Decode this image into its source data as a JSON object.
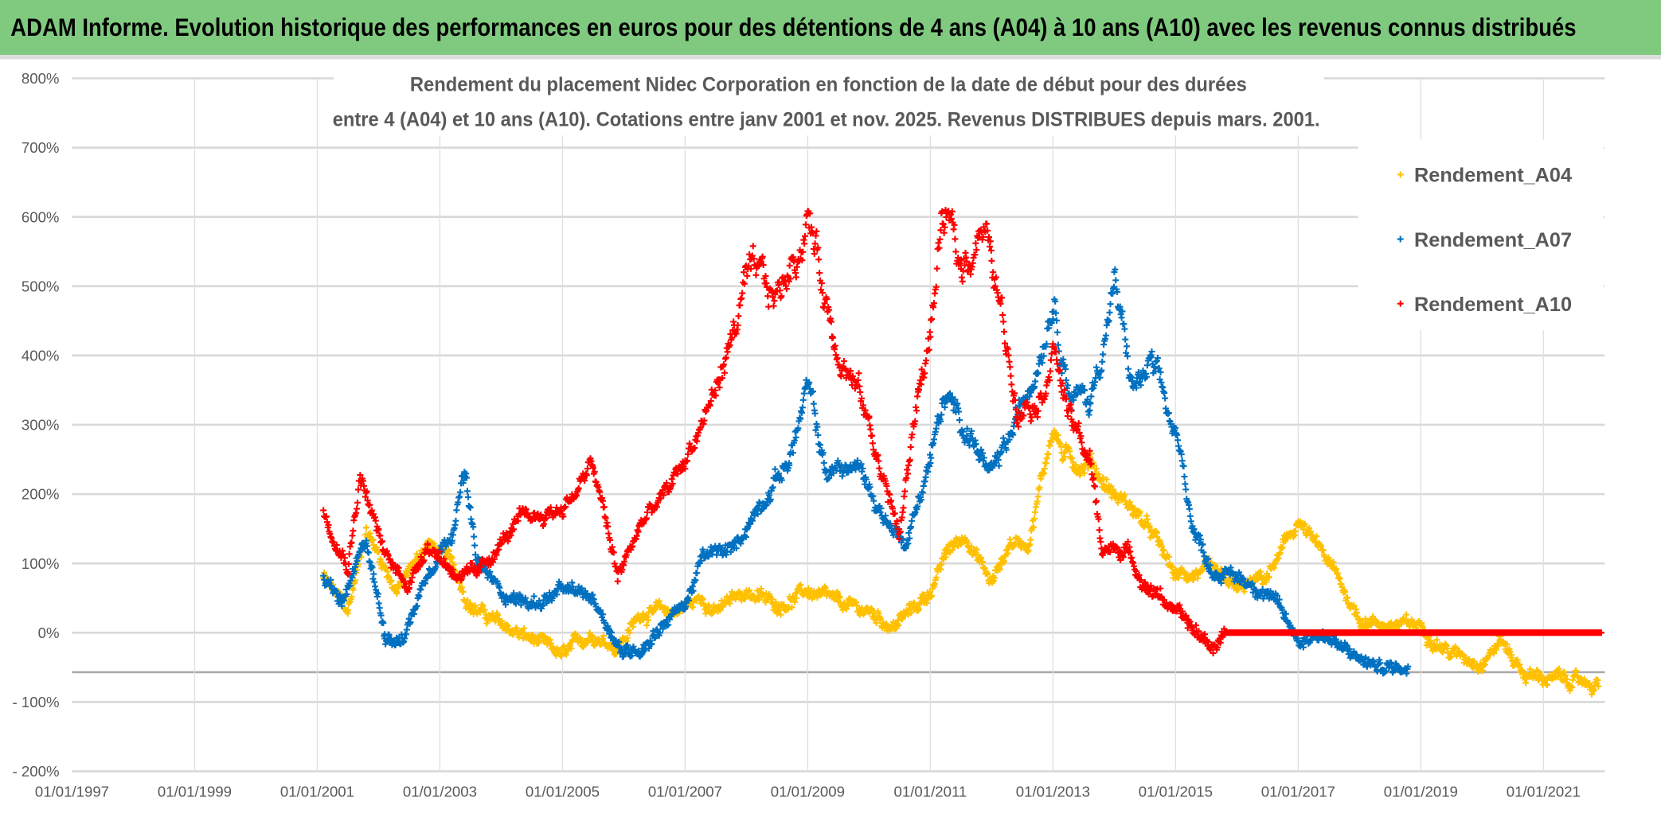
{
  "header": {
    "title": "ADAM Informe. Evolution historique des performances en euros pour des détentions de 4 ans (A04) à 10 ans (A10) avec les revenus connus distribués"
  },
  "chart_data": {
    "type": "scatter",
    "title": [
      "Rendement du placement Nidec Corporation en fonction de la date de début pour des durées",
      "entre 4 (A04) et 10 ans (A10). Cotations entre janv 2001 et nov. 2025. Revenus DISTRIBUES depuis mars. 2001."
    ],
    "xlabel": "",
    "ylabel": "",
    "xlim": [
      1997,
      2022
    ],
    "ylim": [
      -200,
      800
    ],
    "x_ticks": [
      "01/01/1997",
      "01/01/1999",
      "01/01/2001",
      "01/01/2003",
      "01/01/2005",
      "01/01/2007",
      "01/01/2009",
      "01/01/2011",
      "01/01/2013",
      "01/01/2015",
      "01/01/2017",
      "01/01/2019",
      "01/01/2021"
    ],
    "y_ticks": [
      "800%",
      "700%",
      "600%",
      "500%",
      "400%",
      "300%",
      "200%",
      "100%",
      "0%",
      "- 100%",
      "- 200%"
    ],
    "grid": true,
    "legend_position": "right",
    "series": [
      {
        "name": "Rendement_A04",
        "color": "#FFC000",
        "points": [
          [
            2001.1,
            80
          ],
          [
            2001.5,
            30
          ],
          [
            2001.8,
            150
          ],
          [
            2002.3,
            60
          ],
          [
            2002.8,
            130
          ],
          [
            2003.2,
            100
          ],
          [
            2003.5,
            40
          ],
          [
            2004,
            10
          ],
          [
            2004.5,
            -10
          ],
          [
            2005,
            -35
          ],
          [
            2005.5,
            0
          ],
          [
            2005.9,
            -20
          ],
          [
            2006.3,
            30
          ],
          [
            2006.8,
            30
          ],
          [
            2007.3,
            50
          ],
          [
            2007.5,
            30
          ],
          [
            2008,
            60
          ],
          [
            2008.5,
            40
          ],
          [
            2009,
            60
          ],
          [
            2009.5,
            40
          ],
          [
            2010,
            30
          ],
          [
            2010.4,
            10
          ],
          [
            2010.8,
            40
          ],
          [
            2011,
            60
          ],
          [
            2011.3,
            120
          ],
          [
            2011.6,
            140
          ],
          [
            2012,
            70
          ],
          [
            2012.3,
            130
          ],
          [
            2012.6,
            130
          ],
          [
            2013,
            300
          ],
          [
            2013.2,
            250
          ],
          [
            2013.6,
            250
          ],
          [
            2014,
            200
          ],
          [
            2014.3,
            180
          ],
          [
            2014.7,
            130
          ],
          [
            2015,
            80
          ],
          [
            2015.5,
            90
          ],
          [
            2016,
            60
          ],
          [
            2016.5,
            80
          ],
          [
            2017,
            160
          ],
          [
            2017.5,
            100
          ],
          [
            2018,
            20
          ],
          [
            2018.5,
            10
          ],
          [
            2019,
            10
          ],
          [
            2019.5,
            -30
          ],
          [
            2020,
            -40
          ],
          [
            2020.3,
            -10
          ],
          [
            2020.7,
            -60
          ],
          [
            2021,
            -65
          ],
          [
            2021.5,
            -70
          ],
          [
            2021.9,
            -75
          ]
        ]
      },
      {
        "name": "Rendement_A07",
        "color": "#0070C0",
        "points": [
          [
            2001.1,
            80
          ],
          [
            2001.4,
            40
          ],
          [
            2001.8,
            130
          ],
          [
            2002.1,
            0
          ],
          [
            2002.4,
            -10
          ],
          [
            2002.8,
            90
          ],
          [
            2003.2,
            150
          ],
          [
            2003.4,
            230
          ],
          [
            2003.6,
            100
          ],
          [
            2004,
            60
          ],
          [
            2004.5,
            40
          ],
          [
            2005,
            60
          ],
          [
            2005.5,
            50
          ],
          [
            2006,
            -30
          ],
          [
            2006.3,
            -20
          ],
          [
            2006.7,
            20
          ],
          [
            2007,
            40
          ],
          [
            2007.3,
            110
          ],
          [
            2007.8,
            120
          ],
          [
            2008.3,
            200
          ],
          [
            2008.7,
            250
          ],
          [
            2009,
            350
          ],
          [
            2009.3,
            230
          ],
          [
            2009.8,
            240
          ],
          [
            2010.3,
            160
          ],
          [
            2010.6,
            130
          ],
          [
            2011,
            250
          ],
          [
            2011.2,
            330
          ],
          [
            2011.6,
            300
          ],
          [
            2012,
            220
          ],
          [
            2012.4,
            300
          ],
          [
            2012.8,
            420
          ],
          [
            2013,
            500
          ],
          [
            2013.3,
            350
          ],
          [
            2013.6,
            330
          ],
          [
            2014,
            500
          ],
          [
            2014.3,
            350
          ],
          [
            2014.6,
            380
          ],
          [
            2015,
            280
          ],
          [
            2015.3,
            150
          ],
          [
            2015.6,
            90
          ],
          [
            2016,
            80
          ],
          [
            2016.5,
            60
          ],
          [
            2017,
            -10
          ],
          [
            2017.4,
            0
          ],
          [
            2017.8,
            -30
          ],
          [
            2018.3,
            -50
          ],
          [
            2018.8,
            -50
          ]
        ]
      },
      {
        "name": "Rendement_A10",
        "color": "#FF0000",
        "points": [
          [
            2001.1,
            180
          ],
          [
            2001.5,
            100
          ],
          [
            2001.7,
            230
          ],
          [
            2002.1,
            110
          ],
          [
            2002.5,
            70
          ],
          [
            2002.8,
            130
          ],
          [
            2003.2,
            90
          ],
          [
            2003.6,
            80
          ],
          [
            2004,
            130
          ],
          [
            2004.3,
            160
          ],
          [
            2004.7,
            170
          ],
          [
            2005,
            180
          ],
          [
            2005.5,
            240
          ],
          [
            2005.9,
            80
          ],
          [
            2006.3,
            160
          ],
          [
            2006.7,
            200
          ],
          [
            2007,
            250
          ],
          [
            2007.5,
            350
          ],
          [
            2008,
            500
          ],
          [
            2008.5,
            480
          ],
          [
            2009,
            600
          ],
          [
            2009.4,
            450
          ],
          [
            2009.7,
            380
          ],
          [
            2010,
            300
          ],
          [
            2010.5,
            140
          ],
          [
            2010.8,
            350
          ],
          [
            2011,
            430
          ],
          [
            2011.2,
            600
          ],
          [
            2011.5,
            520
          ],
          [
            2011.8,
            600
          ],
          [
            2012,
            530
          ],
          [
            2012.4,
            340
          ],
          [
            2012.8,
            350
          ],
          [
            2013,
            420
          ],
          [
            2013.3,
            300
          ],
          [
            2013.6,
            250
          ],
          [
            2013.8,
            120
          ],
          [
            2014.2,
            120
          ],
          [
            2014.5,
            70
          ],
          [
            2014.8,
            50
          ],
          [
            2015.2,
            10
          ],
          [
            2015.6,
            -20
          ],
          [
            2015.8,
            0
          ],
          [
            2021.95,
            0
          ]
        ]
      }
    ]
  }
}
